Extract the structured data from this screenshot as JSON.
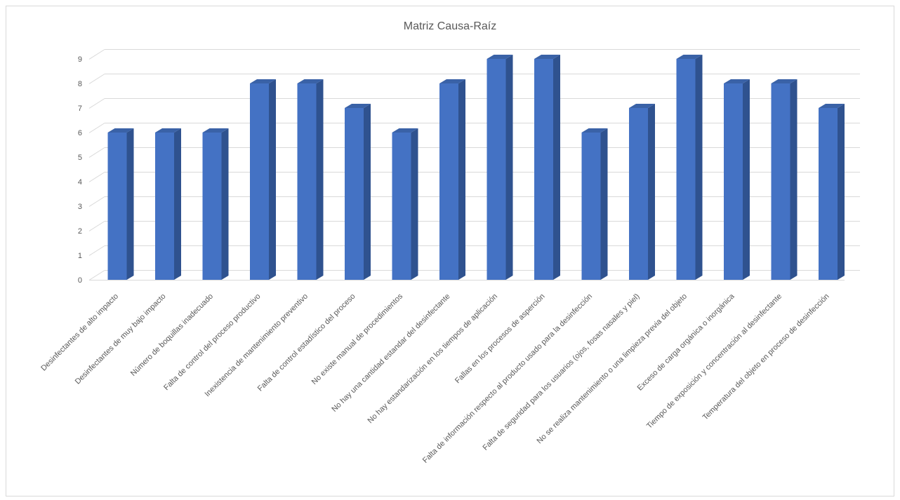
{
  "chart_data": {
    "type": "bar",
    "title": "Matriz Causa-Raíz",
    "categories": [
      "Desinfectantes de alto impacto",
      "Desinfectantes de muy bajo impacto",
      "Número de boquillas inadecuado",
      "Falta de control del proceso productivo",
      "Inexistencia de mantenimiento preventivo",
      "Falta de control estadístico del proceso",
      "No existe manual de procedimientos",
      "No hay una cantidad estandar del desinfectante",
      "No hay estandarización en los tiempos de aplicación",
      "Fallas en los procesos de asperción",
      "Falta de información respecto al producto usado para la desinfección",
      "Falta de seguridad para los usuarios (ojos, fosas nasales y piel)",
      "No se realiza mantenimiento o una limpieza previa del objeto",
      "Exceso de carga orgánica o inorgánica",
      "Tiempo de exposición y concentración al desinfectante",
      "Temperatura del objeto en proceso de desinfección"
    ],
    "values": [
      6,
      6,
      6,
      8,
      8,
      7,
      6,
      8,
      9,
      9,
      6,
      7,
      9,
      8,
      8,
      7
    ],
    "ylim": [
      0,
      9
    ],
    "yticks": [
      "0",
      "1",
      "2",
      "3",
      "4",
      "5",
      "6",
      "7",
      "8",
      "9"
    ],
    "grid": true,
    "legend": "none",
    "colors": {
      "bar_front": "#4472c4",
      "bar_side": "#2f528f",
      "bar_top": "#3a62a7",
      "grid": "#d9d9d9",
      "text": "#595959"
    }
  }
}
